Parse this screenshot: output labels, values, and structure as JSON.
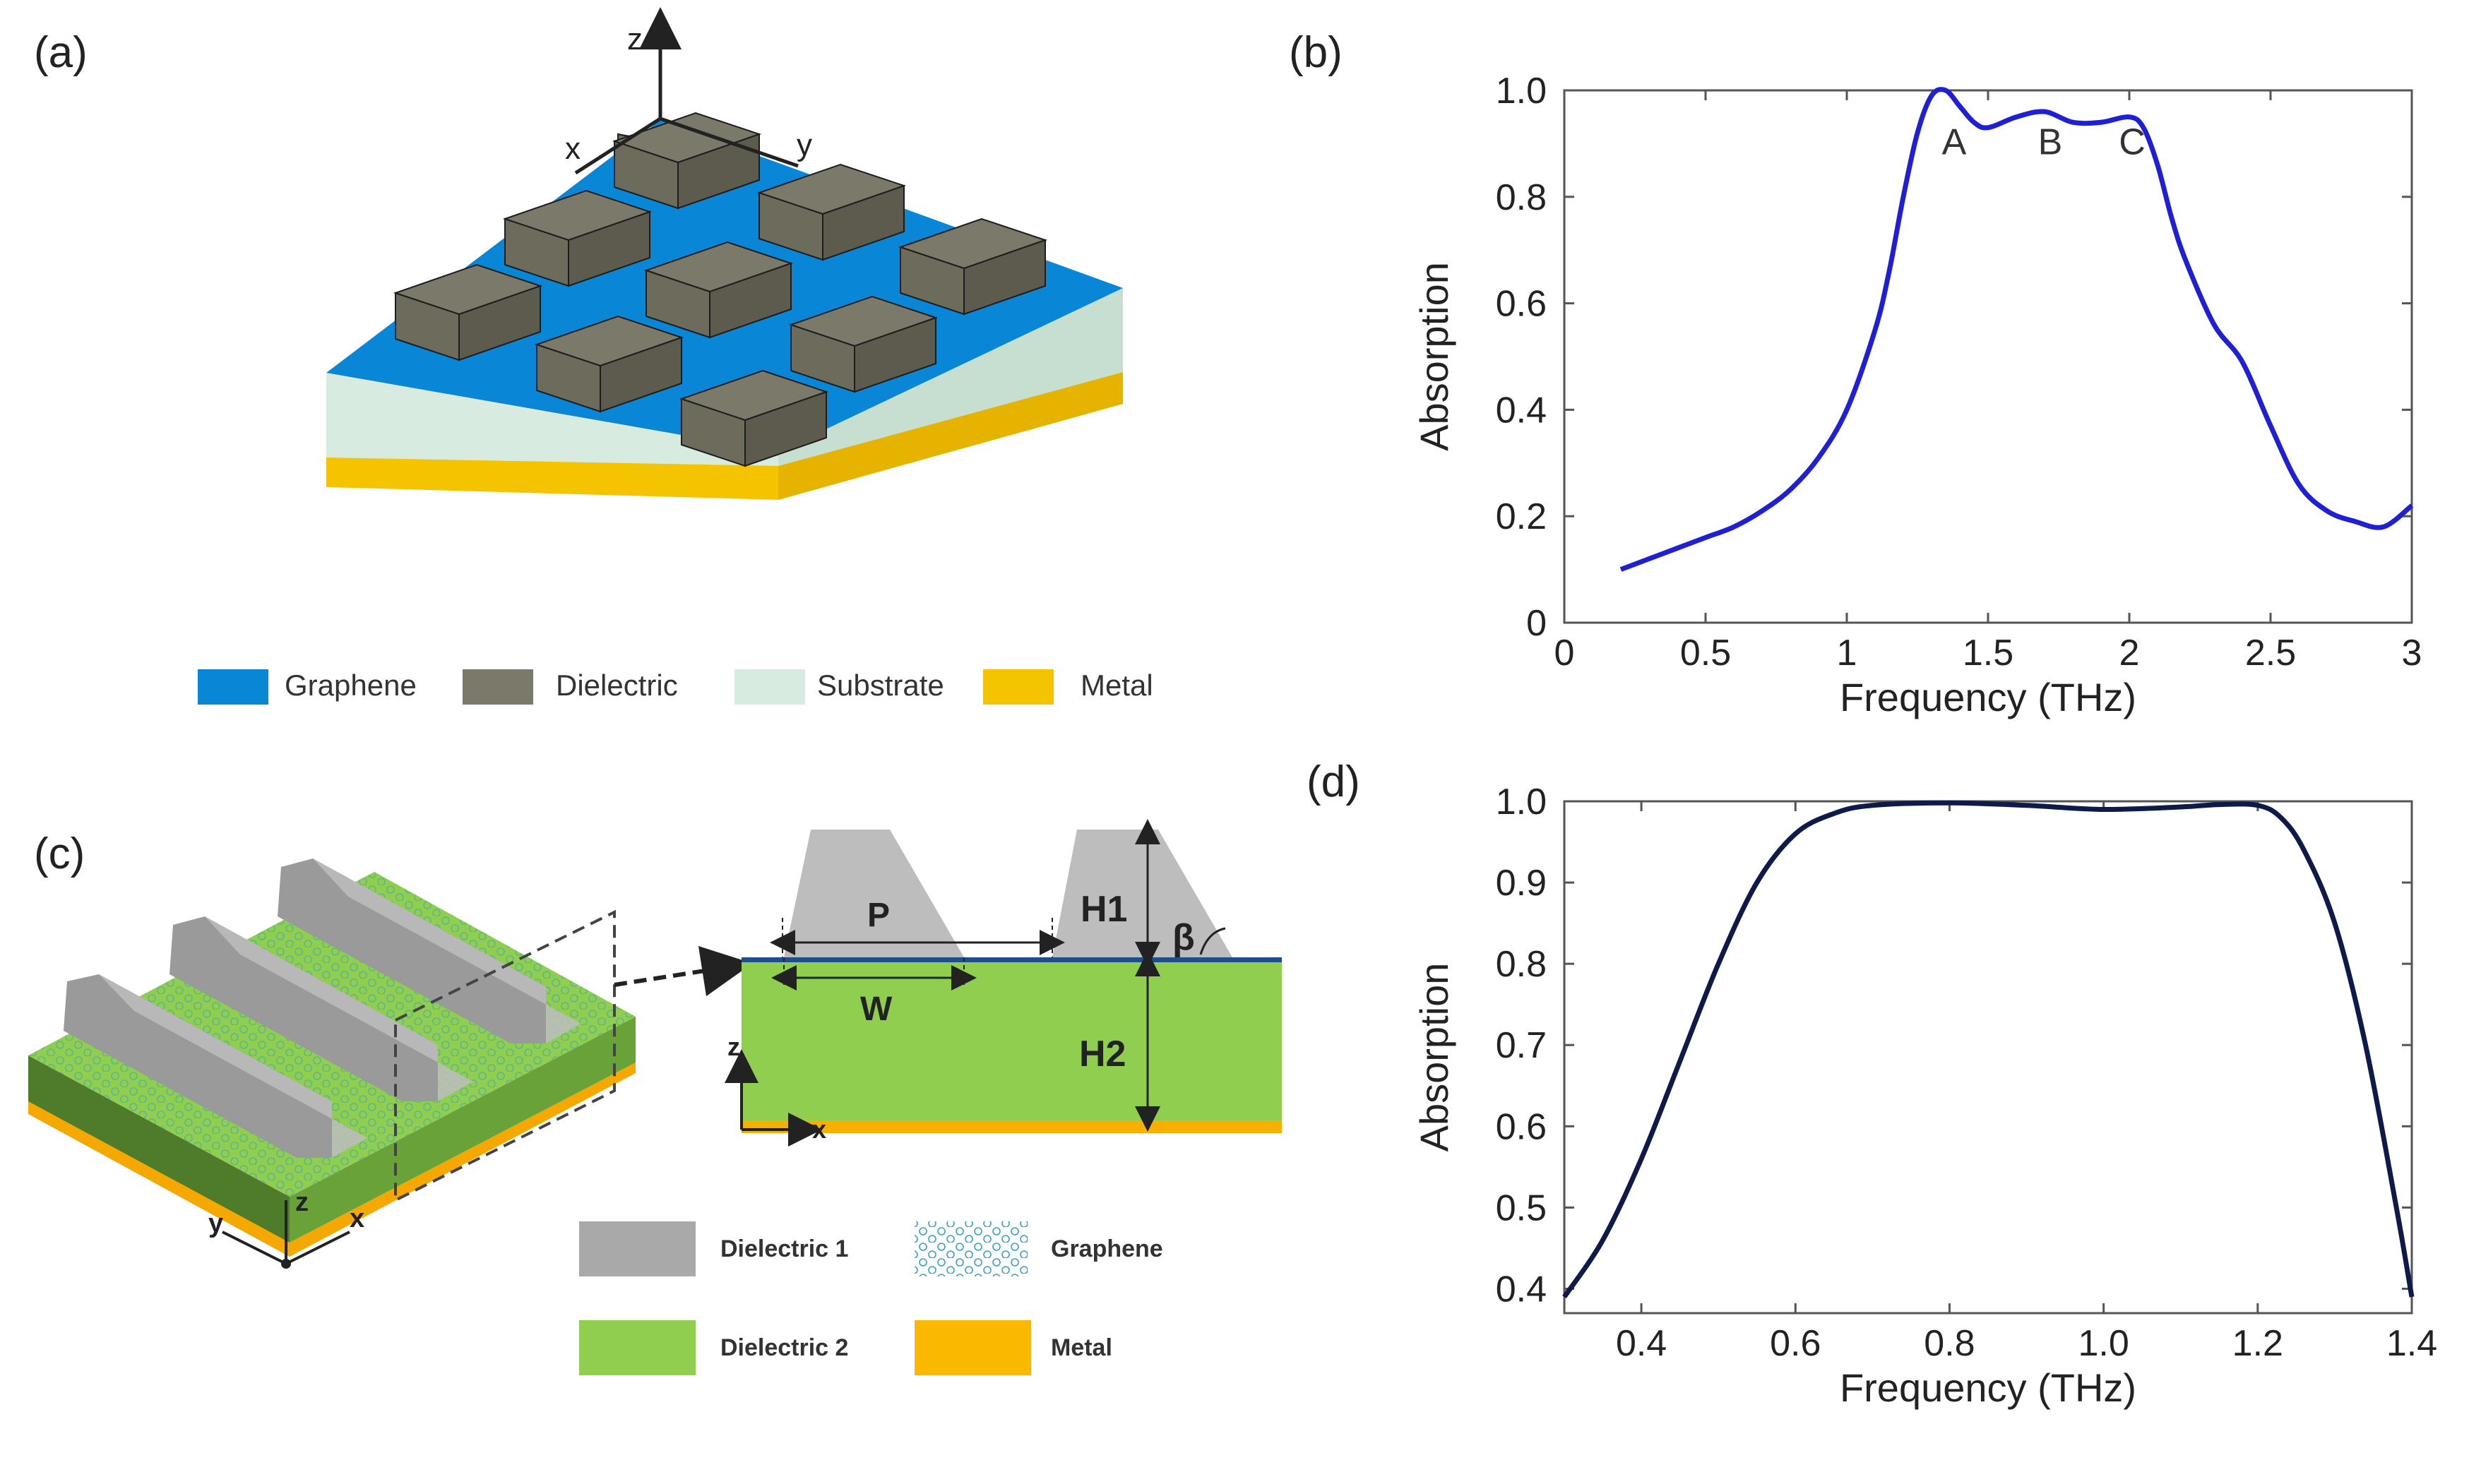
{
  "panels": {
    "a": {
      "label": "(a)",
      "axes": {
        "z": "z",
        "x": "x",
        "y": "y"
      },
      "legend": [
        {
          "name": "Graphene",
          "color": "#0a86d6"
        },
        {
          "name": "Dielectric",
          "color": "#7b7a6a"
        },
        {
          "name": "Substrate",
          "color": "#d8ebe0"
        },
        {
          "name": "Metal",
          "color": "#f5c400"
        }
      ]
    },
    "b": {
      "label": "(b)",
      "peak_labels": [
        "A",
        "B",
        "C"
      ]
    },
    "c": {
      "label": "(c)",
      "axes": {
        "x": "x",
        "y": "y",
        "z": "z"
      },
      "dims": {
        "P": "P",
        "W": "W",
        "H1": "H1",
        "H2": "H2",
        "beta": "β"
      },
      "legend": [
        {
          "name": "Dielectric 1",
          "color": "#a9a9a9"
        },
        {
          "name": "Graphene",
          "color": "#1a7fd0"
        },
        {
          "name": "Dielectric 2",
          "color": "#8fce4e"
        },
        {
          "name": "Metal",
          "color": "#fbb800"
        }
      ]
    },
    "d": {
      "label": "(d)"
    }
  },
  "chart_data": [
    {
      "id": "b",
      "type": "line",
      "title": "",
      "xlabel": "Frequency (THz)",
      "ylabel": "Absorption",
      "xlim": [
        0,
        3
      ],
      "ylim": [
        0,
        1
      ],
      "xticks": [
        0,
        0.5,
        1,
        1.5,
        2,
        2.5,
        3
      ],
      "xtick_labels": [
        "0",
        "0.5",
        "1",
        "1.5",
        "2",
        "2.5",
        "3"
      ],
      "yticks": [
        0,
        0.2,
        0.4,
        0.6,
        0.8,
        1.0
      ],
      "ytick_labels": [
        "0",
        "0.2",
        "0.4",
        "0.6",
        "0.8",
        "1.0"
      ],
      "color": "#1f1fd6",
      "series": [
        {
          "name": "Absorption",
          "x": [
            0.2,
            0.3,
            0.4,
            0.5,
            0.6,
            0.7,
            0.8,
            0.9,
            1.0,
            1.1,
            1.15,
            1.2,
            1.25,
            1.3,
            1.35,
            1.4,
            1.45,
            1.5,
            1.6,
            1.7,
            1.8,
            1.9,
            2.0,
            2.05,
            2.1,
            2.15,
            2.2,
            2.3,
            2.4,
            2.5,
            2.6,
            2.7,
            2.8,
            2.9,
            3.0
          ],
          "y": [
            0.1,
            0.12,
            0.14,
            0.16,
            0.18,
            0.21,
            0.25,
            0.31,
            0.4,
            0.55,
            0.66,
            0.8,
            0.92,
            0.99,
            1.0,
            0.97,
            0.94,
            0.93,
            0.95,
            0.96,
            0.94,
            0.94,
            0.95,
            0.93,
            0.86,
            0.76,
            0.68,
            0.56,
            0.49,
            0.37,
            0.26,
            0.21,
            0.19,
            0.18,
            0.22
          ]
        }
      ],
      "annotations": [
        {
          "text": "A",
          "x": 1.38,
          "y": 0.88
        },
        {
          "text": "B",
          "x": 1.72,
          "y": 0.88
        },
        {
          "text": "C",
          "x": 2.01,
          "y": 0.88
        }
      ]
    },
    {
      "id": "d",
      "type": "line",
      "title": "",
      "xlabel": "Frequency (THz)",
      "ylabel": "Absorption",
      "xlim": [
        0.3,
        1.4
      ],
      "ylim": [
        0.37,
        1.0
      ],
      "xticks": [
        0.4,
        0.6,
        0.8,
        1.0,
        1.2,
        1.4
      ],
      "xtick_labels": [
        "0.4",
        "0.6",
        "0.8",
        "1.0",
        "1.2",
        "1.4"
      ],
      "yticks": [
        0.4,
        0.5,
        0.6,
        0.7,
        0.8,
        0.9,
        1.0
      ],
      "ytick_labels": [
        "0.4",
        "0.5",
        "0.6",
        "0.7",
        "0.8",
        "0.9",
        "1.0"
      ],
      "color": "#0d1a4a",
      "series": [
        {
          "name": "Absorption",
          "x": [
            0.3,
            0.35,
            0.4,
            0.45,
            0.5,
            0.55,
            0.6,
            0.65,
            0.7,
            0.8,
            0.9,
            1.0,
            1.1,
            1.15,
            1.2,
            1.23,
            1.26,
            1.3,
            1.34,
            1.38,
            1.4
          ],
          "y": [
            0.39,
            0.46,
            0.56,
            0.68,
            0.8,
            0.9,
            0.96,
            0.985,
            0.995,
            0.998,
            0.995,
            0.99,
            0.993,
            0.996,
            0.995,
            0.98,
            0.94,
            0.85,
            0.7,
            0.5,
            0.39
          ]
        }
      ]
    }
  ]
}
